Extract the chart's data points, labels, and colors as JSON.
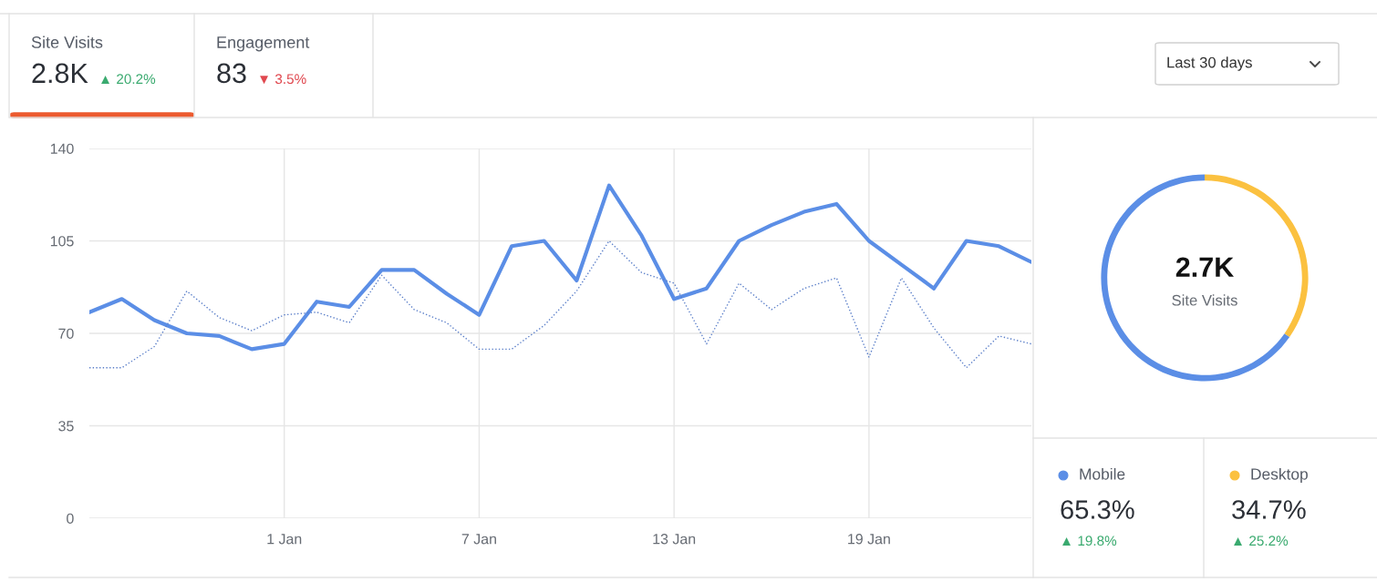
{
  "chart_data": [
    {
      "type": "other",
      "annotations": [
        "Site Visits",
        "2.8K",
        "▲ 20.2%",
        "Engagement",
        "83",
        "▼ 3.5%",
        "Last 30 days"
      ]
    },
    {
      "type": "line",
      "categories": [
        null,
        null,
        null,
        null,
        null,
        null,
        "1 Jan",
        null,
        null,
        null,
        null,
        null,
        "7 Jan",
        null,
        null,
        null,
        null,
        null,
        "13 Jan",
        null,
        null,
        null,
        null,
        null,
        "19 Jan",
        null,
        null,
        null,
        null,
        null
      ],
      "series": [
        {
          "color": "#5b8ee6",
          "line_style": "solid",
          "values": [
            78,
            83,
            75,
            70,
            69,
            64,
            66,
            82,
            80,
            94,
            94,
            85,
            77,
            103,
            105,
            90,
            126,
            107,
            83,
            87,
            105,
            111,
            116,
            119,
            105,
            96,
            87,
            105,
            103,
            97
          ]
        },
        {
          "color": "#5b7fc9",
          "line_style": "dotted",
          "values": [
            57,
            57,
            65,
            86,
            76,
            71,
            77,
            78,
            74,
            92,
            79,
            74,
            64,
            64,
            73,
            86,
            105,
            93,
            89,
            66,
            89,
            79,
            87,
            91,
            61,
            91,
            72,
            57,
            69,
            66
          ]
        }
      ],
      "ylim": [
        0,
        140
      ],
      "yticks": [
        0,
        35,
        70,
        105,
        140
      ],
      "grid": true,
      "marker": "none"
    },
    {
      "type": "donut",
      "categories": [
        "Mobile",
        "Desktop"
      ],
      "values": [
        65.3,
        34.7
      ],
      "colors": [
        "#5b8ee6",
        "#fbc140"
      ],
      "value_labels": [
        "65.3%",
        "34.7%"
      ],
      "legend": "bottom",
      "annotations": [
        "2.7K",
        "Site Visits",
        "▲ 19.8%",
        "▲ 25.2%"
      ]
    }
  ]
}
